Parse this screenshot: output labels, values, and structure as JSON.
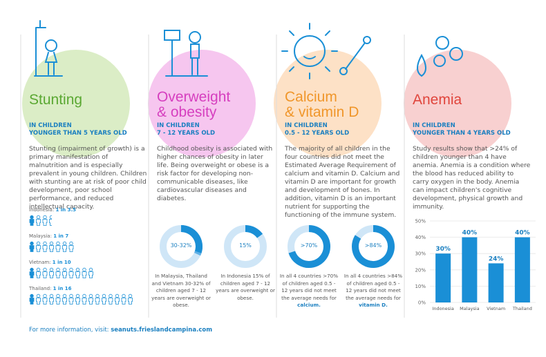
{
  "columns": [
    {
      "title_lines": [
        "Stunting"
      ],
      "color": "#5aa832",
      "subtitle_lines": [
        "IN CHILDREN",
        "YOUNGER THAN 5 YEARS OLD"
      ],
      "body": "Stunting (impairment of growth) is a primary manifestation of malnutrition and is especially prevalent in young children. Children with stunting are at risk of poor child development, poor school performance, and reduced intellectual capacity.",
      "ratios": [
        {
          "country": "Indonesia:",
          "ratio_label": "1 in 3.5",
          "of": 3.5
        },
        {
          "country": "Malaysia:",
          "ratio_label": "1 in 7",
          "of": 7
        },
        {
          "country": "Vietnam:",
          "ratio_label": "1 in 10",
          "of": 10
        },
        {
          "country": "Thailand:",
          "ratio_label": "1 in 16",
          "of": 16
        }
      ]
    },
    {
      "title_lines": [
        "Overweight",
        "& obesity"
      ],
      "color": "#d63fbf",
      "subtitle_lines": [
        "IN CHILDREN",
        "7 - 12 YEARS OLD"
      ],
      "body": "Childhood obesity is associated with higher chances of obesity in later life. Being overweight or obese is a risk factor for developing non-communicable diseases, like cardiovascular diseases and diabetes.",
      "donuts": [
        {
          "low": 30,
          "high": 32,
          "value_label": "30-32%",
          "caption": "In Malaysia, Thailand and Vietnam 30-32% of children aged 7 - 12 years are overweight or obese."
        },
        {
          "value": 15,
          "value_label": "15%",
          "caption": "In Indonesia 15% of children aged 7 - 12 years are overweight or obese."
        }
      ]
    },
    {
      "title_lines": [
        "Calcium",
        "& vitamin D"
      ],
      "color": "#f0962a",
      "subtitle_lines": [
        "IN CHILDREN",
        "0.5 - 12 YEARS OLD"
      ],
      "body": "The majority of all children in the four countries did not meet the Estimated Average Requirement of calcium and vitamin D. Calcium and vitamin D are important for growth and development of bones. In addition, vitamin D is an important nutrient for supporting the functioning of the immune system.",
      "donuts": [
        {
          "value": 70,
          "value_label": ">70%",
          "caption": "In all 4 countries >70% of children aged 0.5 - 12 years did not meet the average needs for",
          "caption_emphasis": "calcium."
        },
        {
          "value": 84,
          "value_label": ">84%",
          "caption": "In all 4 countries >84% of children aged 0.5 - 12 years did not meet the average needs for",
          "caption_emphasis": "vitamin D."
        }
      ]
    },
    {
      "title_lines": [
        "Anemia"
      ],
      "color": "#e0453c",
      "subtitle_lines": [
        "IN CHILDREN",
        "YOUNGER THAN 4 YEARS OLD"
      ],
      "body": "Study results show that >24% of children younger than 4 have anemia. Anemia is a condition where the blood has reduced ability to carry oxygen in the body. Anemia can impact children's cognitive development, physical growth and immunity.",
      "chart": {
        "type": "bar",
        "categories": [
          "Indonesia",
          "Malaysia",
          "Vietnam",
          "Thailand"
        ],
        "values": [
          30,
          40,
          24,
          40
        ],
        "value_labels": [
          "30%",
          "40%",
          "24%",
          "40%"
        ],
        "color": "#1a8fd6",
        "ylim": [
          0,
          50
        ],
        "yticks": [
          {
            "value": 0,
            "label": "0%"
          },
          {
            "value": 10,
            "label": "10%"
          },
          {
            "value": 20,
            "label": "20%"
          },
          {
            "value": 30,
            "label": "30%"
          },
          {
            "value": 40,
            "label": "40%"
          },
          {
            "value": 50,
            "label": "50%"
          }
        ],
        "grid": true
      }
    }
  ],
  "footer": {
    "text": "For more information, visit:",
    "link": "seanuts.frieslandcampina.com"
  }
}
